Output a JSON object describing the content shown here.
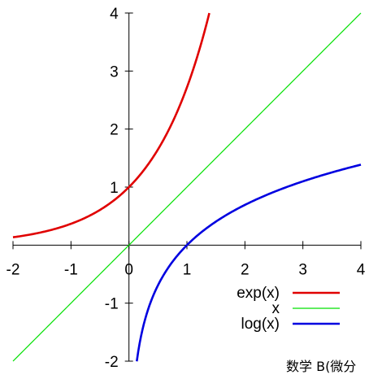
{
  "chart_data": {
    "type": "line",
    "xlim": [
      -2,
      4
    ],
    "ylim": [
      -2,
      4
    ],
    "x_ticks": [
      -2,
      -1,
      0,
      1,
      2,
      3,
      4
    ],
    "y_ticks": [
      -2,
      -1,
      1,
      2,
      3,
      4
    ],
    "x_tick_labels": [
      "-2",
      "-1",
      "0",
      "1",
      "2",
      "3",
      "4"
    ],
    "y_tick_labels": [
      "-2",
      "-1",
      "1",
      "2",
      "3",
      "4"
    ],
    "series": [
      {
        "name": "exp(x)",
        "color": "#e00000",
        "x": [
          -2,
          -1.5,
          -1,
          -0.5,
          0,
          0.5,
          1,
          1.2,
          1.386
        ],
        "y": [
          0.135,
          0.223,
          0.368,
          0.607,
          1.0,
          1.649,
          2.718,
          3.32,
          4.0
        ]
      },
      {
        "name": "x",
        "color": "#00e000",
        "x": [
          -2,
          4
        ],
        "y": [
          -2,
          4
        ]
      },
      {
        "name": "log(x)",
        "color": "#0000e0",
        "x": [
          0.135,
          0.2,
          0.3,
          0.5,
          0.75,
          1,
          1.5,
          2,
          2.5,
          3,
          3.5,
          4
        ],
        "y": [
          -2.0,
          -1.609,
          -1.204,
          -0.693,
          -0.288,
          0,
          0.405,
          0.693,
          0.916,
          1.099,
          1.253,
          1.386
        ]
      }
    ],
    "legend": {
      "position": "bottom-right",
      "entries": [
        "exp(x)",
        "x",
        "log(x)"
      ]
    },
    "grid": false
  },
  "caption": "数学 B(微分"
}
